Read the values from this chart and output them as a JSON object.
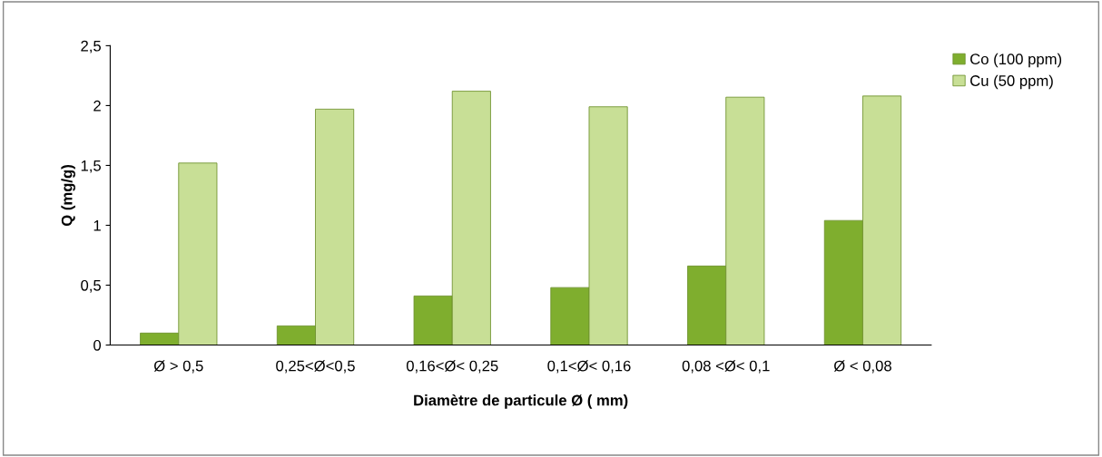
{
  "chart_data": {
    "type": "bar",
    "xlabel": "Diamètre de particule Ø ( mm)",
    "ylabel": "Q (mg/g)",
    "categories": [
      "Ø > 0,5",
      "0,25<Ø<0,5",
      "0,16<Ø< 0,25",
      "0,1<Ø< 0,16",
      "0,08 <Ø< 0,1",
      "Ø < 0,08"
    ],
    "series": [
      {
        "name": "Co (100 ppm)",
        "color": "#7fae2e",
        "values": [
          0.1,
          0.16,
          0.41,
          0.48,
          0.66,
          1.04
        ]
      },
      {
        "name": "Cu (50 ppm)",
        "color": "#c8df96",
        "values": [
          1.52,
          1.97,
          2.12,
          1.99,
          2.07,
          2.08
        ]
      }
    ],
    "ylim": [
      0,
      2.5
    ],
    "yticks": [
      {
        "value": 0,
        "label": "0"
      },
      {
        "value": 0.5,
        "label": "0,5"
      },
      {
        "value": 1,
        "label": "1"
      },
      {
        "value": 1.5,
        "label": "1,5"
      },
      {
        "value": 2,
        "label": "2"
      },
      {
        "value": 2.5,
        "label": "2,5"
      }
    ],
    "grid": false,
    "legend": "top right"
  }
}
